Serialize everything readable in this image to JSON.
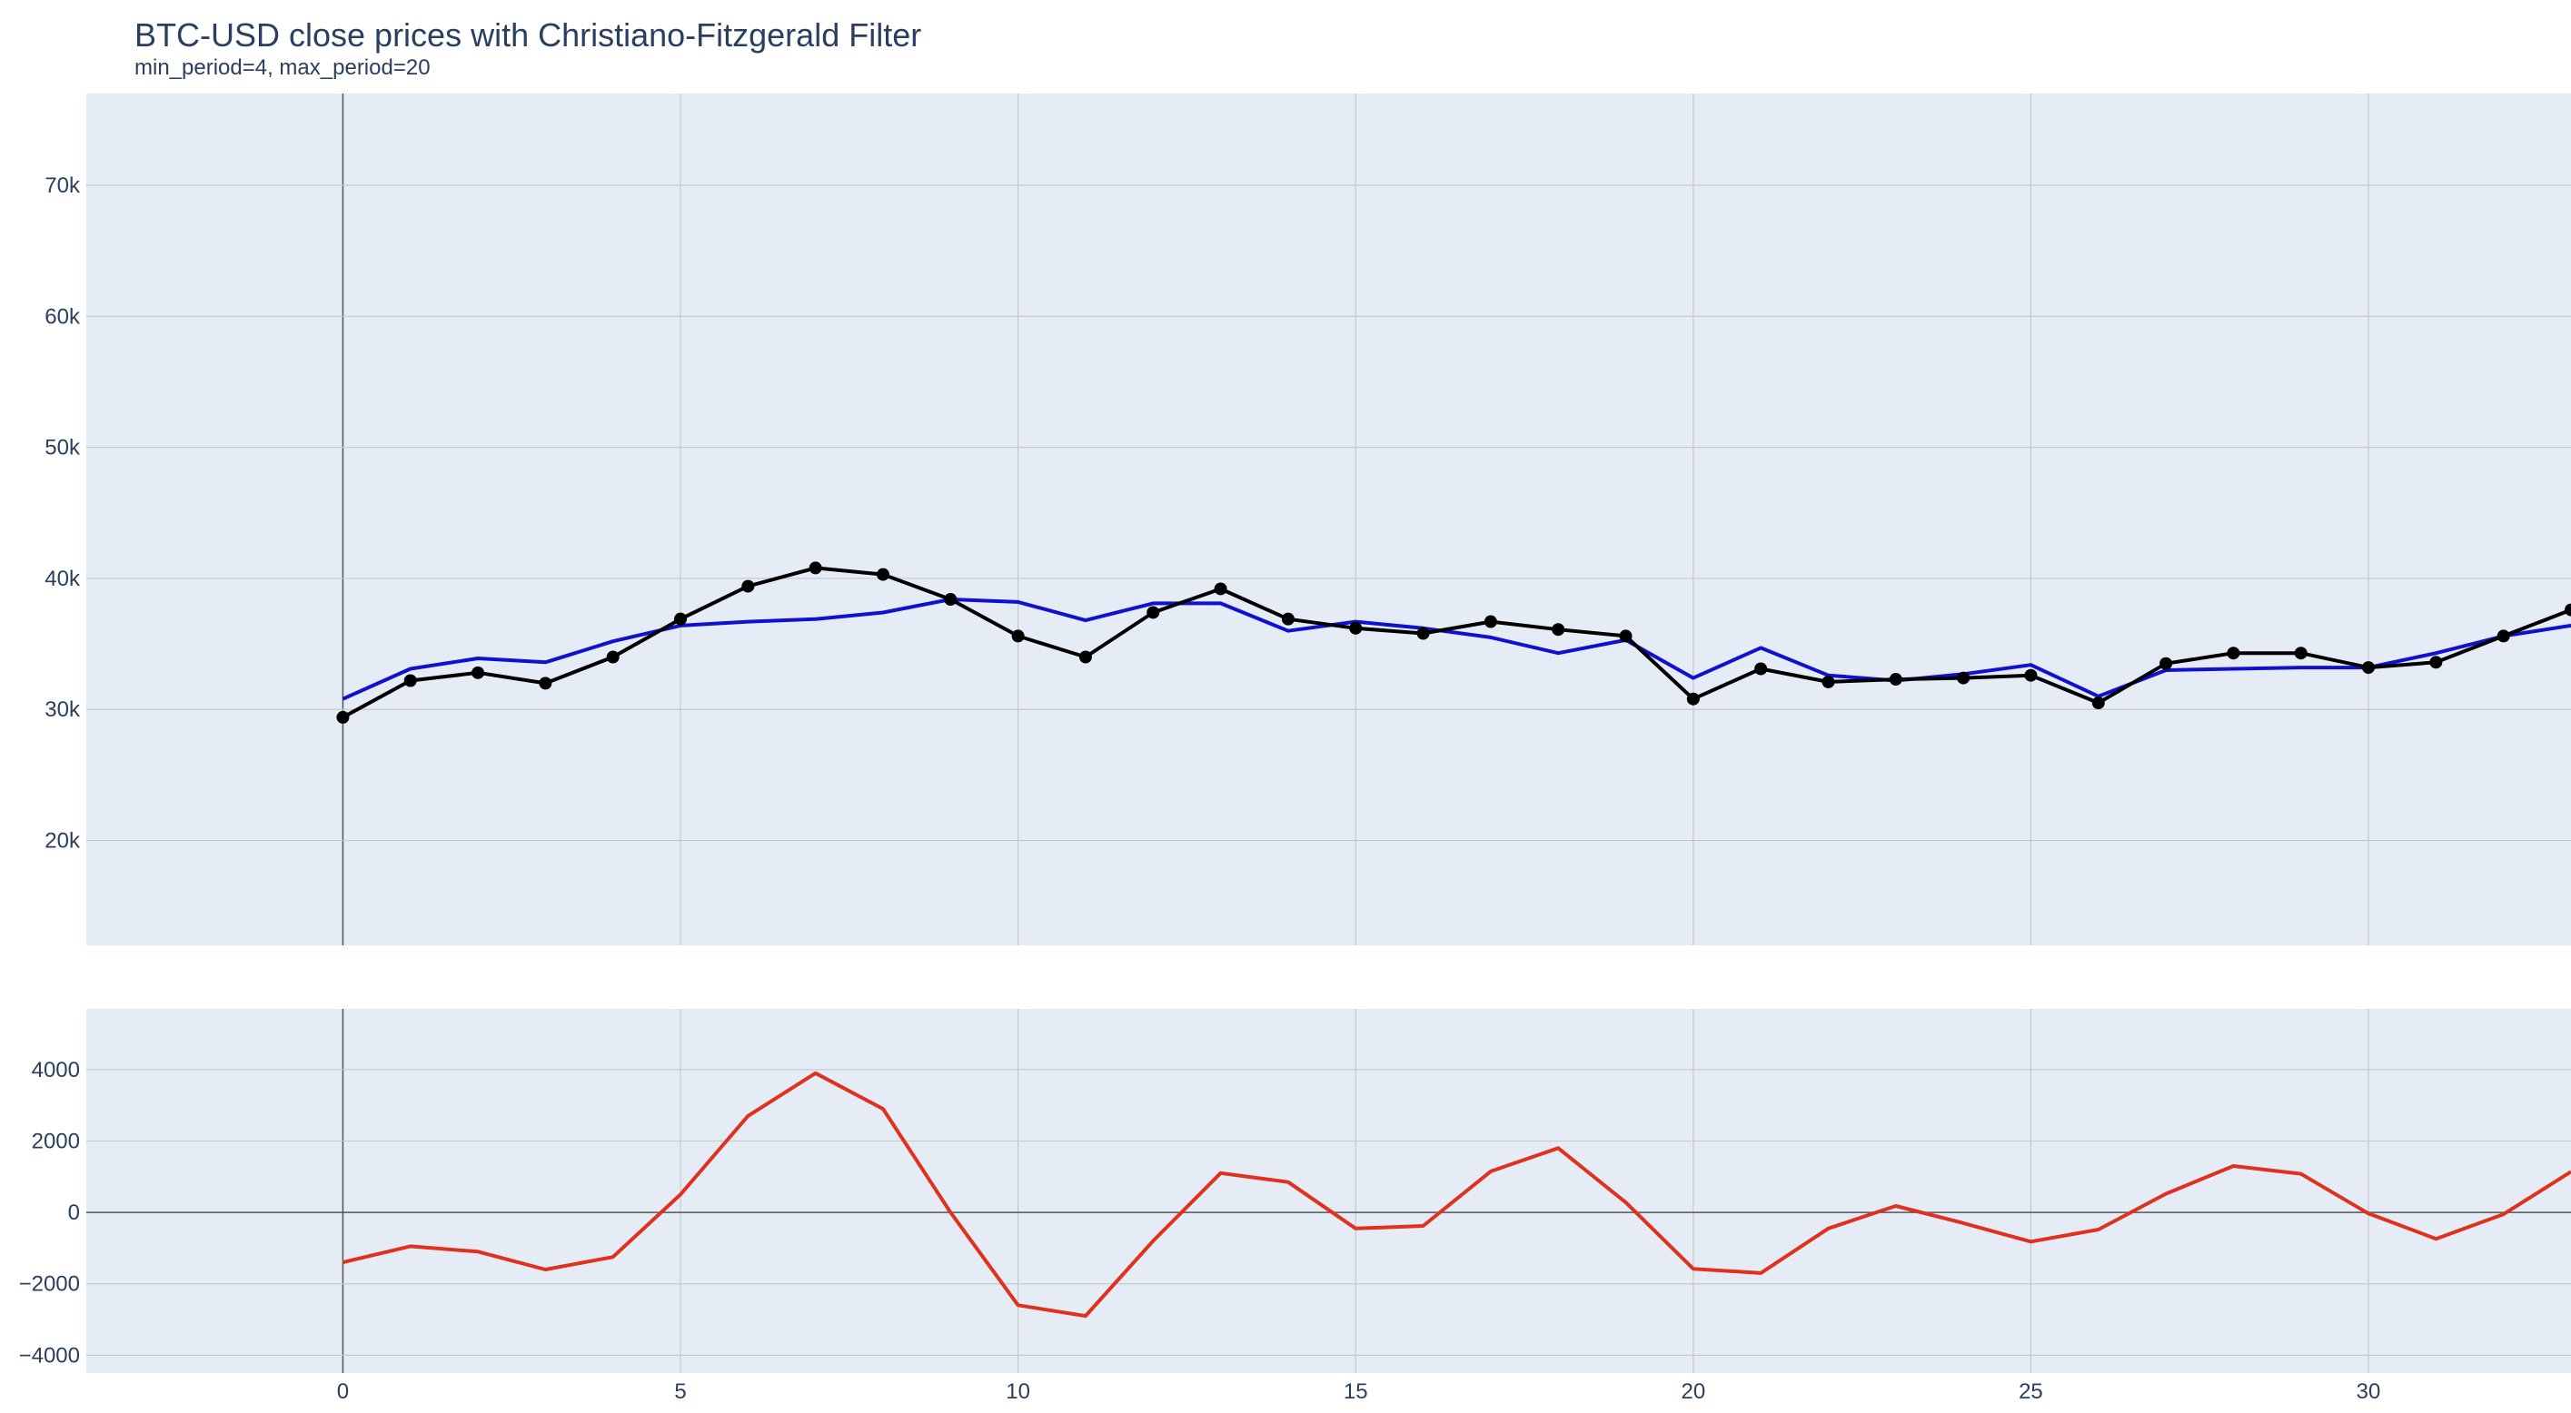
{
  "chart_data": {
    "type": "line",
    "title": "BTC-USD close prices with Christiano-Fitzgerald Filter",
    "subtitle": "min_period=4, max_period=20",
    "x": [
      0,
      1,
      2,
      3,
      4,
      5,
      6,
      7,
      8,
      9,
      10,
      11,
      12,
      13,
      14,
      15,
      16,
      17,
      18,
      19,
      20,
      21,
      22,
      23,
      24,
      25,
      26,
      27,
      28,
      29,
      30,
      31,
      32,
      33
    ],
    "xlim": [
      -3.8,
      33
    ],
    "xticks": [
      0,
      5,
      10,
      15,
      20,
      25,
      30
    ],
    "colors": {
      "plot_bg": "#e5ecf6",
      "grid": "#c8c8c8",
      "close": "#000000",
      "trend": "#1010d0",
      "cycle": "#e0301e"
    },
    "top_panel": {
      "ylim": [
        12000,
        77000
      ],
      "yticks": [
        20000,
        30000,
        40000,
        50000,
        60000,
        70000
      ],
      "ytick_labels": [
        "20k",
        "30k",
        "40k",
        "50k",
        "60k",
        "70k"
      ],
      "series": [
        {
          "key": "close",
          "markers": true,
          "values": [
            29400,
            32200,
            32800,
            32000,
            34000,
            36900,
            39400,
            40800,
            40300,
            38400,
            35600,
            34000,
            37400,
            39200,
            36900,
            36200,
            35800,
            36700,
            36100,
            35600,
            30800,
            33100,
            32100,
            32300,
            32400,
            32600,
            30500,
            33500,
            34300,
            34300,
            33200,
            33600,
            35600,
            37600
          ]
        },
        {
          "key": "trend",
          "markers": false,
          "values": [
            30800,
            33100,
            33900,
            33600,
            35200,
            36400,
            36700,
            36900,
            37400,
            38400,
            38200,
            36800,
            38100,
            38100,
            36000,
            36700,
            36200,
            35500,
            34300,
            35300,
            32400,
            34700,
            32600,
            32200,
            32700,
            33400,
            31000,
            33000,
            33100,
            33200,
            33200,
            34300,
            35600,
            36400
          ]
        }
      ]
    },
    "bottom_panel": {
      "ylim": [
        -4500,
        5700
      ],
      "yticks": [
        -4000,
        -2000,
        0,
        2000,
        4000
      ],
      "ytick_labels": [
        "−4000",
        "−2000",
        "0",
        "2000",
        "4000"
      ],
      "series": [
        {
          "key": "cycle",
          "markers": false,
          "values": [
            -1400,
            -950,
            -1100,
            -1600,
            -1250,
            500,
            2700,
            3900,
            2900,
            0,
            -2600,
            -2900,
            -800,
            1100,
            850,
            -450,
            -380,
            1150,
            1800,
            280,
            -1580,
            -1700,
            -450,
            180,
            -300,
            -820,
            -480,
            520,
            1300,
            1080,
            -30,
            -740,
            -50,
            1140
          ]
        }
      ]
    }
  }
}
